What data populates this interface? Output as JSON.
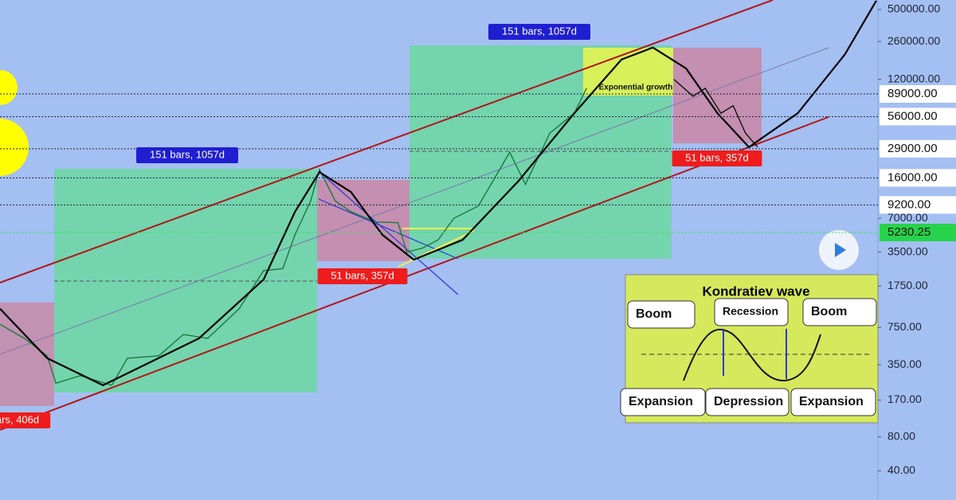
{
  "chart_data": {
    "type": "line",
    "log_scale": true,
    "xlim": [
      0,
      502
    ],
    "ylim": [
      22,
      608000
    ],
    "yticks": [
      {
        "value": 500000,
        "label": "500000.00"
      },
      {
        "value": 260000,
        "label": "260000.00"
      },
      {
        "value": 120000,
        "label": "120000.00"
      },
      {
        "value": 7000,
        "label": "7000.00"
      },
      {
        "value": 3500,
        "label": "3500.00"
      },
      {
        "value": 1750,
        "label": "1750.00"
      },
      {
        "value": 750,
        "label": "750.00"
      },
      {
        "value": 350,
        "label": "350.00"
      },
      {
        "value": 170,
        "label": "170.00"
      },
      {
        "value": 80,
        "label": "80.00"
      },
      {
        "value": 40,
        "label": "40.00"
      }
    ],
    "price_levels": [
      {
        "value": 89000,
        "label": "89000.00"
      },
      {
        "value": 56000,
        "label": "56000.00"
      },
      {
        "value": 29000,
        "label": "29000.00"
      },
      {
        "value": 16000,
        "label": "16000.00"
      },
      {
        "value": 9200,
        "label": "9200.00"
      }
    ],
    "last_price": {
      "value": 5230.25,
      "label": "5230.25"
    },
    "series": [
      {
        "color": "#1b7a3a",
        "x": [
          0,
          14,
          27,
          32,
          46,
          64,
          73,
          91,
          105,
          119,
          137,
          151,
          162,
          169,
          178,
          183,
          192,
          201,
          215,
          228,
          233,
          242,
          251,
          260,
          274,
          292,
          301,
          315,
          329,
          336
        ],
        "values": [
          800,
          600,
          420,
          240,
          280,
          230,
          400,
          420,
          650,
          600,
          1100,
          2400,
          2500,
          5000,
          10000,
          19000,
          10000,
          8000,
          6500,
          6400,
          3500,
          3800,
          4500,
          7000,
          9000,
          27000,
          14000,
          40000,
          60000,
          100000
        ]
      },
      {
        "color": "#111111",
        "x": [
          386,
          397,
          404,
          413,
          420,
          427,
          434
        ],
        "values": [
          120000,
          85000,
          100000,
          60000,
          70000,
          40000,
          30000
        ]
      },
      {
        "color": "#000000",
        "x": [
          0,
          27,
          59,
          114,
          151,
          169,
          183,
          201,
          219,
          237,
          265,
          297,
          329,
          356,
          374,
          393,
          411,
          429,
          457,
          484,
          502
        ],
        "values": [
          1100,
          400,
          230,
          600,
          2000,
          8000,
          18000,
          12000,
          5000,
          3000,
          4500,
          15000,
          60000,
          180000,
          230000,
          150000,
          60000,
          30000,
          60000,
          200000,
          600000
        ]
      }
    ],
    "annotations": [
      "151 bars, 1057d",
      "151 bars, 1057d",
      "51 bars, 357d",
      "51 bars, 357d",
      "ars, 406d",
      "Exponential growth"
    ],
    "inset": {
      "title": "Kondratiev wave",
      "phases": [
        "Boom",
        "Recession",
        "Boom",
        "Expansion",
        "Depression",
        "Expansion"
      ]
    }
  }
}
